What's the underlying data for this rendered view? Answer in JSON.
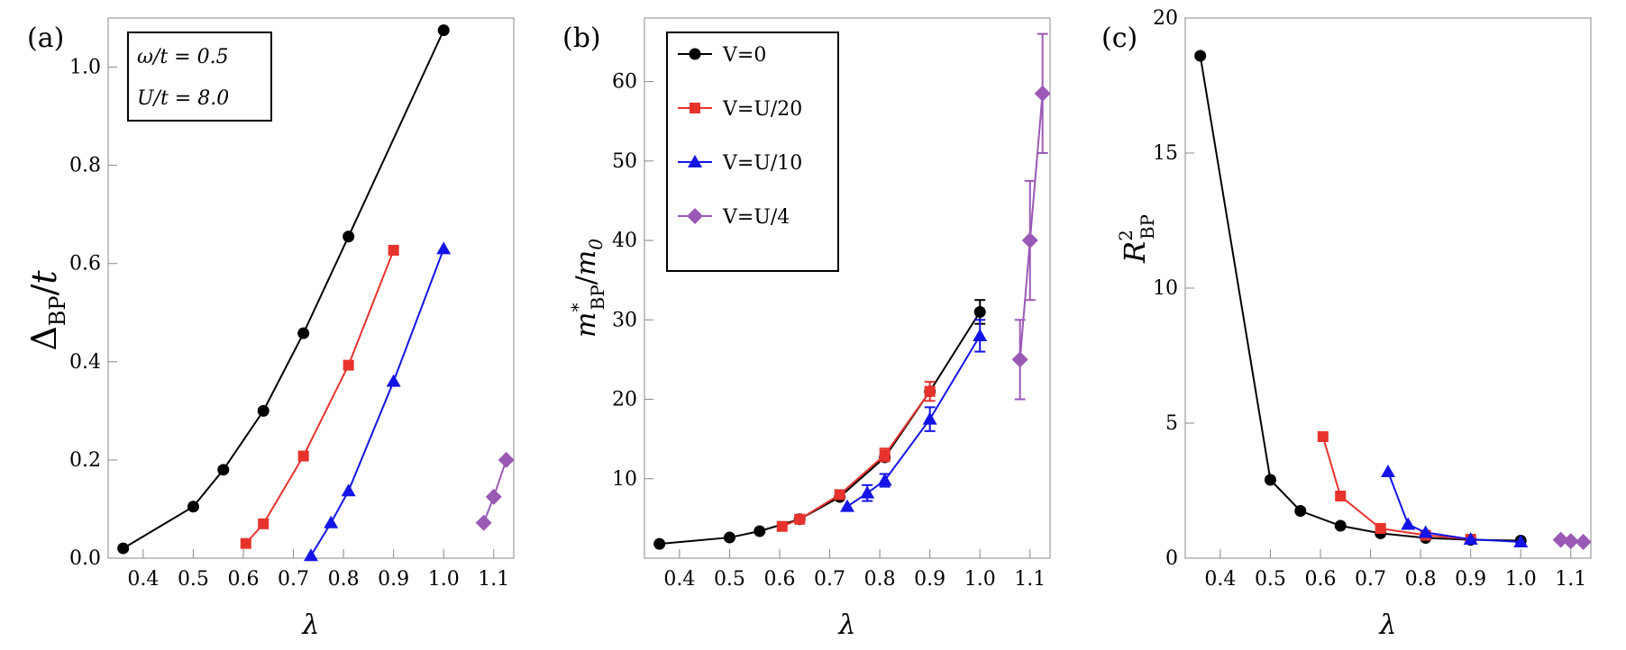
{
  "chart_data": [
    {
      "type": "line",
      "panel_label": "(a)",
      "xlabel": "λ",
      "ylabel": "Δ_BP/t",
      "xlim": [
        0.33,
        1.14
      ],
      "ylim": [
        0.0,
        1.1
      ],
      "xticks": [
        0.4,
        0.5,
        0.6,
        0.7,
        0.8,
        0.9,
        1.0,
        1.1
      ],
      "xtick_labels": [
        "0.4",
        "0.5",
        "0.6",
        "0.7",
        "0.8",
        "0.9",
        "1.0",
        "1.1"
      ],
      "yticks": [
        0.0,
        0.2,
        0.4,
        0.6,
        0.8,
        1.0
      ],
      "ytick_labels": [
        "0.0",
        "0.2",
        "0.4",
        "0.6",
        "0.8",
        "1.0"
      ],
      "annotations": [
        "ω/t = 0.5",
        "U/t = 8.0"
      ],
      "series": [
        {
          "name": "V=0",
          "color": "#000000",
          "marker": "circle",
          "x": [
            0.36,
            0.5,
            0.56,
            0.64,
            0.72,
            0.81,
            1.0
          ],
          "y": [
            0.02,
            0.105,
            0.18,
            0.3,
            0.458,
            0.655,
            1.075
          ]
        },
        {
          "name": "V=U/20",
          "color": "#e8322c",
          "marker": "square",
          "x": [
            0.605,
            0.64,
            0.72,
            0.81,
            0.9
          ],
          "y": [
            0.03,
            0.07,
            0.208,
            0.393,
            0.627
          ]
        },
        {
          "name": "V=U/10",
          "color": "#1414e6",
          "marker": "triangle",
          "x": [
            0.735,
            0.775,
            0.81,
            0.9,
            1.0
          ],
          "y": [
            0.005,
            0.072,
            0.137,
            0.36,
            0.63
          ]
        },
        {
          "name": "V=U/4",
          "color": "#9b59b6",
          "marker": "diamond",
          "x": [
            1.08,
            1.1,
            1.125
          ],
          "y": [
            0.072,
            0.125,
            0.2
          ]
        }
      ]
    },
    {
      "type": "line",
      "panel_label": "(b)",
      "xlabel": "λ",
      "ylabel": "m*_BP/m_0",
      "xlim": [
        0.33,
        1.14
      ],
      "ylim": [
        0,
        68
      ],
      "xticks": [
        0.4,
        0.5,
        0.6,
        0.7,
        0.8,
        0.9,
        1.0,
        1.1
      ],
      "xtick_labels": [
        "0.4",
        "0.5",
        "0.6",
        "0.7",
        "0.8",
        "0.9",
        "1.0",
        "1.1"
      ],
      "yticks": [
        10,
        20,
        30,
        40,
        50,
        60
      ],
      "ytick_labels": [
        "10",
        "20",
        "30",
        "40",
        "50",
        "60"
      ],
      "legend": {
        "placement": "top-left",
        "entries": [
          "V=0",
          "V=U/20",
          "V=U/10",
          "V=U/4"
        ]
      },
      "series": [
        {
          "name": "V=0",
          "color": "#000000",
          "marker": "circle",
          "x": [
            0.36,
            0.5,
            0.56,
            0.64,
            0.72,
            0.81,
            0.9,
            1.0
          ],
          "y": [
            1.8,
            2.6,
            3.4,
            4.9,
            7.7,
            12.7,
            21.0,
            31.0
          ],
          "err": [
            0,
            0,
            0,
            0,
            0,
            0,
            0,
            1.5
          ]
        },
        {
          "name": "V=U/20",
          "color": "#e8322c",
          "marker": "square",
          "x": [
            0.605,
            0.64,
            0.72,
            0.81,
            0.9
          ],
          "y": [
            4.0,
            4.9,
            8.0,
            13.0,
            21.0
          ],
          "err": [
            0,
            0,
            0,
            0.8,
            1.2
          ]
        },
        {
          "name": "V=U/10",
          "color": "#1414e6",
          "marker": "triangle",
          "x": [
            0.735,
            0.775,
            0.81,
            0.9,
            1.0
          ],
          "y": [
            6.5,
            8.2,
            9.8,
            17.5,
            28.0
          ],
          "err": [
            0,
            1.0,
            0.8,
            1.5,
            2.0
          ]
        },
        {
          "name": "V=U/4",
          "color": "#9b59b6",
          "marker": "diamond",
          "x": [
            1.08,
            1.1,
            1.125
          ],
          "y": [
            25.0,
            40.0,
            58.5
          ],
          "err": [
            5.0,
            7.5,
            7.5
          ]
        }
      ]
    },
    {
      "type": "line",
      "panel_label": "(c)",
      "xlabel": "λ",
      "ylabel": "R²_BP",
      "xlim": [
        0.33,
        1.14
      ],
      "ylim": [
        0,
        20
      ],
      "xticks": [
        0.4,
        0.5,
        0.6,
        0.7,
        0.8,
        0.9,
        1.0,
        1.1
      ],
      "xtick_labels": [
        "0.4",
        "0.5",
        "0.6",
        "0.7",
        "0.8",
        "0.9",
        "1.0",
        "1.1"
      ],
      "yticks": [
        0,
        5,
        10,
        15,
        20
      ],
      "ytick_labels": [
        "0",
        "5",
        "10",
        "15",
        "20"
      ],
      "series": [
        {
          "name": "V=0",
          "color": "#000000",
          "marker": "circle",
          "x": [
            0.36,
            0.5,
            0.56,
            0.64,
            0.72,
            0.81,
            0.9,
            1.0
          ],
          "y": [
            18.6,
            2.9,
            1.75,
            1.2,
            0.92,
            0.75,
            0.68,
            0.65
          ]
        },
        {
          "name": "V=U/20",
          "color": "#e8322c",
          "marker": "square",
          "x": [
            0.605,
            0.64,
            0.72,
            0.81,
            0.9
          ],
          "y": [
            4.5,
            2.3,
            1.1,
            0.85,
            0.7
          ]
        },
        {
          "name": "V=U/10",
          "color": "#1414e6",
          "marker": "triangle",
          "x": [
            0.735,
            0.775,
            0.81,
            0.9,
            1.0
          ],
          "y": [
            3.2,
            1.25,
            0.95,
            0.7,
            0.6
          ]
        },
        {
          "name": "V=U/4",
          "color": "#9b59b6",
          "marker": "diamond",
          "x": [
            1.08,
            1.1,
            1.125
          ],
          "y": [
            0.68,
            0.63,
            0.6
          ]
        }
      ]
    }
  ]
}
